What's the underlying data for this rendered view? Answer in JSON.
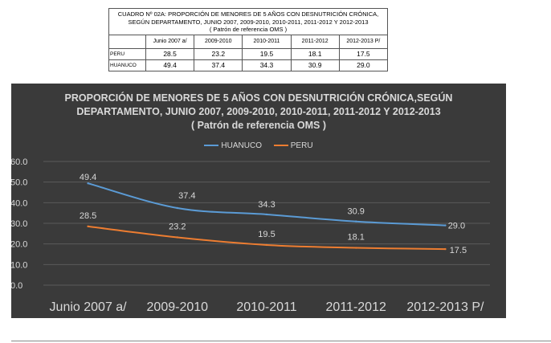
{
  "table": {
    "title_line1": "CUADRO Nº 02A: PROPORCIÓN DE MENORES DE 5 AÑOS CON DESNUTRICIÓN CRÓNICA,",
    "title_line2": "SEGÚN DEPARTAMENTO, JUNIO 2007, 2009-2010, 2010-2011, 2011-2012 Y 2012-2013",
    "title_line3": "( Patrón de referencia OMS )",
    "headers": [
      "Junio 2007 a/",
      "2009-2010",
      "2010-2011",
      "2011-2012",
      "2012-2013 P/"
    ],
    "rows": [
      {
        "label": "PERU",
        "values": [
          "28.5",
          "23.2",
          "19.5",
          "18.1",
          "17.5"
        ]
      },
      {
        "label": "HUANUCO",
        "values": [
          "49.4",
          "37.4",
          "34.3",
          "30.9",
          "29.0"
        ]
      }
    ]
  },
  "chart_data": {
    "type": "line",
    "title_line1": "PROPORCIÓN DE MENORES DE 5 AÑOS CON DESNUTRICIÓN CRÓNICA,SEGÚN",
    "title_line2": "DEPARTAMENTO, JUNIO 2007, 2009-2010, 2010-2011, 2011-2012 Y 2012-2013",
    "title_line3": "( Patrón de referencia OMS )",
    "categories": [
      "Junio 2007 a/",
      "2009-2010",
      "2010-2011",
      "2011-2012",
      "2012-2013 P/"
    ],
    "series": [
      {
        "name": "HUANUCO",
        "values": [
          49.4,
          37.4,
          34.3,
          30.9,
          29.0
        ],
        "color": "#5b9bd5",
        "labels": [
          "49.4",
          "37.4",
          "34.3",
          "30.9",
          "29.0"
        ]
      },
      {
        "name": "PERU",
        "values": [
          28.5,
          23.2,
          19.5,
          18.1,
          17.5
        ],
        "color": "#ed7d31",
        "labels": [
          "28.5",
          "23.2",
          "19.5",
          "18.1",
          "17.5"
        ]
      }
    ],
    "yticks": [
      "0.0",
      "10.0",
      "20.0",
      "30.0",
      "40.0",
      "50.0",
      "60.0"
    ],
    "ylim": [
      0,
      60
    ],
    "grid": true,
    "legend": "top-center",
    "background": "#3a3a3a"
  }
}
